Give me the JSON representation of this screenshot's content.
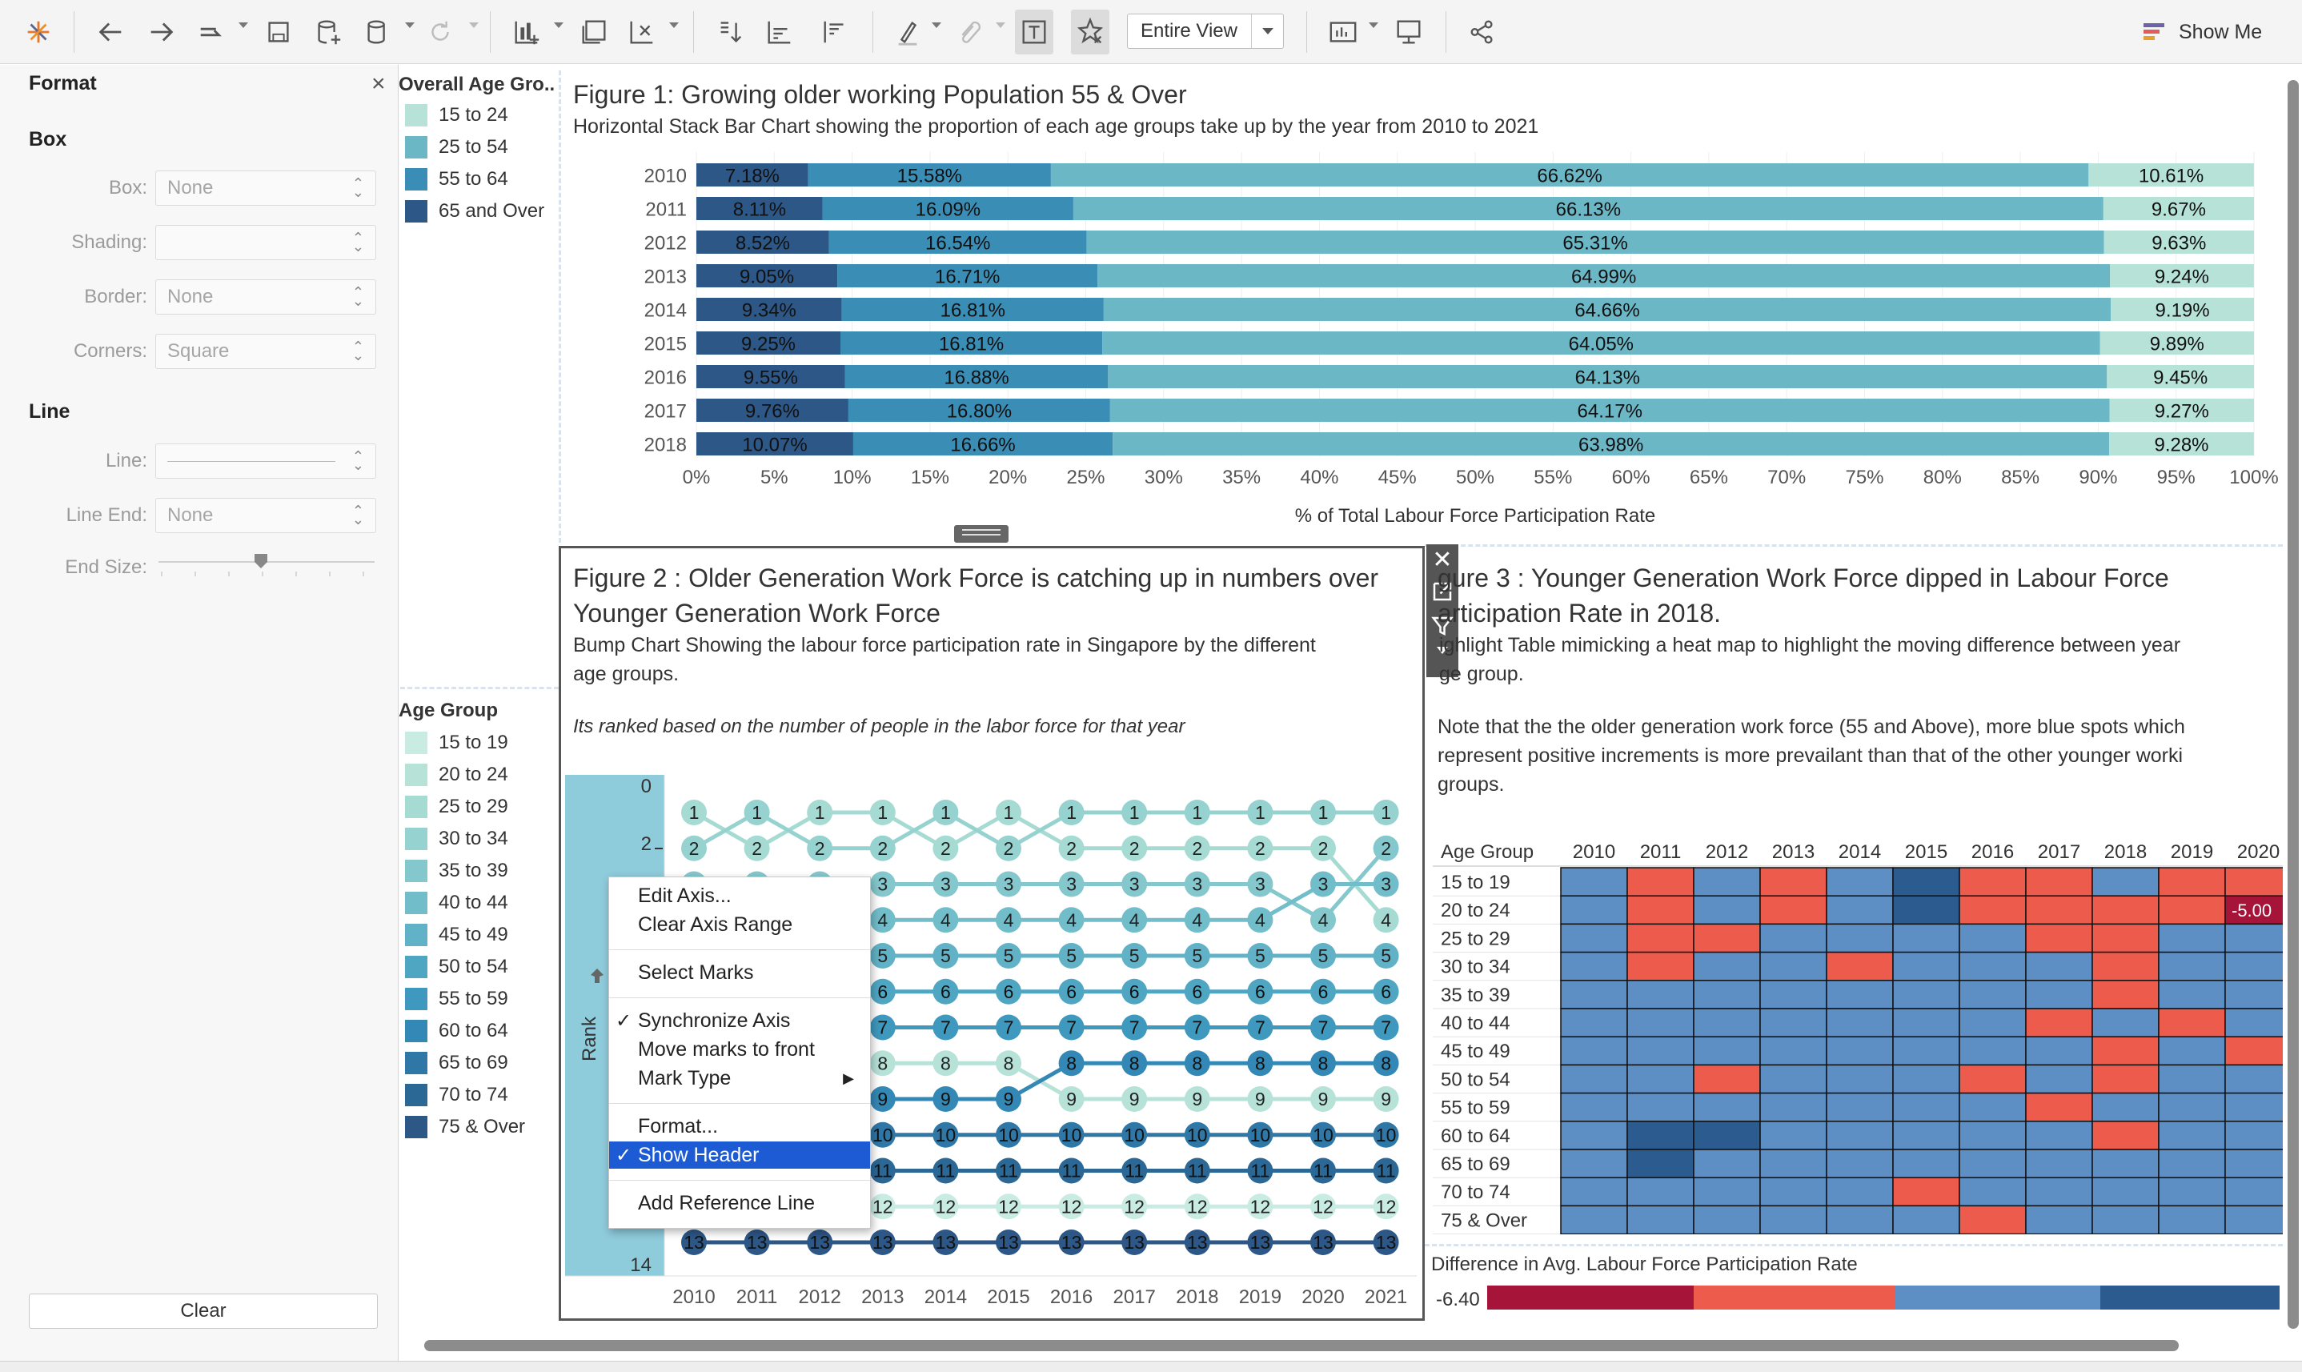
{
  "toolbar": {
    "view_label": "Entire View",
    "show_me_label": "Show Me",
    "icons": [
      "tableau-logo-icon",
      "undo-icon",
      "redo-icon",
      "replay-icon",
      "save-icon",
      "new-datasource-icon",
      "pause-icon",
      "refresh-icon",
      "new-worksheet-icon",
      "duplicate-icon",
      "clear-sheet-icon",
      "swap-icon",
      "sort-asc-icon",
      "sort-desc-icon",
      "highlight-icon",
      "group-icon",
      "labels-icon",
      "fix-axes-icon",
      "show-cards-icon",
      "presentation-icon",
      "share-icon"
    ]
  },
  "format_pane": {
    "title": "Format",
    "close": "×",
    "box_section": "Box",
    "line_section": "Line",
    "fields": {
      "box_label": "Box:",
      "box_value": "None",
      "shading_label": "Shading:",
      "shading_value": "",
      "border_label": "Border:",
      "border_value": "None",
      "corners_label": "Corners:",
      "corners_value": "Square",
      "line_label": "Line:",
      "line_end_label": "Line End:",
      "line_end_value": "None",
      "end_size_label": "End Size:"
    },
    "clear_label": "Clear"
  },
  "legend1": {
    "title": "Overall Age Gro..",
    "items": [
      {
        "label": "15 to 24",
        "color": "#b6e2d8"
      },
      {
        "label": "25 to 54",
        "color": "#6bb7c6"
      },
      {
        "label": "55 to 64",
        "color": "#3a8db5"
      },
      {
        "label": "65 and Over",
        "color": "#2d5786"
      }
    ]
  },
  "legend2": {
    "title": "Age Group",
    "items": [
      {
        "label": "15 to 19",
        "color": "#c8ebe2"
      },
      {
        "label": "20 to 24",
        "color": "#b6e2d8"
      },
      {
        "label": "25 to 29",
        "color": "#a6dbd3"
      },
      {
        "label": "30 to 34",
        "color": "#96d2cf"
      },
      {
        "label": "35 to 39",
        "color": "#84c8cd"
      },
      {
        "label": "40 to 44",
        "color": "#72bdca"
      },
      {
        "label": "45 to 49",
        "color": "#61b2c6"
      },
      {
        "label": "50 to 54",
        "color": "#4fa6c2"
      },
      {
        "label": "55 to 59",
        "color": "#3f98bd"
      },
      {
        "label": "60 to 64",
        "color": "#3488b5"
      },
      {
        "label": "65 to 69",
        "color": "#2f77a6"
      },
      {
        "label": "70 to 74",
        "color": "#2b6896"
      },
      {
        "label": "75 & Over",
        "color": "#2d5786"
      }
    ]
  },
  "fig1": {
    "title": "Figure 1: Growing older working Population 55 & Over",
    "subtitle": "Horizontal Stack Bar Chart showing the proportion of each age groups take up by the year from 2010 to 2021"
  },
  "fig2": {
    "title_line1": "Figure 2 : Older Generation Work Force is catching up in numbers over",
    "title_line2": "Younger Generation Work Force",
    "sub1": "Bump Chart Showing the labour force participation rate in Singapore by the different",
    "sub2": "age groups.",
    "sub3": "Its ranked based on the number of people in the labor force for that year",
    "axis_label": "Rank"
  },
  "fig3": {
    "title_line1": "gure 3 : Younger Generation Work Force dipped in Labour Force",
    "title_line2": "articipation Rate in 2018.",
    "sub1": "ighlight Table mimicking a heat map to highlight the moving difference between year",
    "sub2": "ge group.",
    "sub3": "Note that the the older generation work force (55 and Above), more blue spots which",
    "sub4": "represent positive increments is more  prevailant than that of the other younger worki",
    "sub5": "groups.",
    "row_header": "Age Group",
    "cell_value": "-5.00",
    "legend_title": "Difference in Avg. Labour Force Participation Rate",
    "legend_min": "-6.40"
  },
  "context_menu": {
    "items": [
      "Edit Axis...",
      "Clear Axis Range",
      "Select Marks",
      "Synchronize Axis",
      "Move marks to front",
      "Mark Type",
      "Format...",
      "Show Header",
      "Add Reference Line"
    ],
    "check": "✓",
    "submenu": "▶"
  },
  "chart_data": [
    {
      "type": "bar",
      "orientation": "horizontal",
      "stacked": true,
      "title": "Figure 1: Growing older working Population 55 & Over",
      "xlabel": "% of Total Labour Force Participation Rate",
      "xlim": [
        0,
        100
      ],
      "x_ticks": [
        "0%",
        "5%",
        "10%",
        "15%",
        "20%",
        "25%",
        "30%",
        "35%",
        "40%",
        "45%",
        "50%",
        "55%",
        "60%",
        "65%",
        "70%",
        "75%",
        "80%",
        "85%",
        "90%",
        "95%",
        "100%"
      ],
      "categories": [
        "2010",
        "2011",
        "2012",
        "2013",
        "2014",
        "2015",
        "2016",
        "2017",
        "2018"
      ],
      "series": [
        {
          "name": "65 and Over",
          "color": "#2d5786",
          "values": [
            7.18,
            8.11,
            8.52,
            9.05,
            9.34,
            9.25,
            9.55,
            9.76,
            10.07
          ]
        },
        {
          "name": "55 to 64",
          "color": "#3a8db5",
          "values": [
            15.58,
            16.09,
            16.54,
            16.71,
            16.81,
            16.81,
            16.88,
            16.8,
            16.66
          ]
        },
        {
          "name": "25 to 54",
          "color": "#6bb7c6",
          "values": [
            66.62,
            66.13,
            65.31,
            64.99,
            64.66,
            64.05,
            64.13,
            64.17,
            63.98
          ]
        },
        {
          "name": "15 to 24",
          "color": "#b6e2d8",
          "values": [
            10.61,
            9.67,
            9.63,
            9.24,
            9.19,
            9.89,
            9.45,
            9.27,
            9.28
          ]
        }
      ]
    },
    {
      "type": "line",
      "subtype": "bump",
      "ylabel": "Rank",
      "y_ticks": [
        "0",
        "2",
        "14"
      ],
      "categories": [
        "2010",
        "2011",
        "2012",
        "2013",
        "2014",
        "2015",
        "2016",
        "2017",
        "2018",
        "2019",
        "2020",
        "2021"
      ],
      "series": [
        {
          "name": "15 to 19",
          "color": "#c8ebe2",
          "values": [
            12,
            12,
            12,
            12,
            12,
            12,
            12,
            12,
            12,
            12,
            12,
            12
          ]
        },
        {
          "name": "20 to 24",
          "color": "#b6e2d8",
          "values": [
            8,
            8,
            8,
            8,
            8,
            8,
            9,
            9,
            9,
            9,
            9,
            9
          ]
        },
        {
          "name": "25 to 29",
          "color": "#a6dbd3",
          "values": [
            1,
            2,
            1,
            1,
            2,
            1,
            2,
            2,
            2,
            2,
            2,
            4
          ]
        },
        {
          "name": "30 to 34",
          "color": "#96d2cf",
          "values": [
            2,
            1,
            2,
            2,
            1,
            2,
            1,
            1,
            1,
            1,
            1,
            1
          ]
        },
        {
          "name": "35 to 39",
          "color": "#84c8cd",
          "values": [
            3,
            3,
            3,
            3,
            3,
            3,
            3,
            3,
            3,
            3,
            4,
            2
          ]
        },
        {
          "name": "40 to 44",
          "color": "#72bdca",
          "values": [
            4,
            4,
            4,
            4,
            4,
            4,
            4,
            4,
            4,
            4,
            3,
            3
          ]
        },
        {
          "name": "45 to 49",
          "color": "#61b2c6",
          "values": [
            5,
            5,
            5,
            5,
            5,
            5,
            5,
            5,
            5,
            5,
            5,
            5
          ]
        },
        {
          "name": "50 to 54",
          "color": "#4fa6c2",
          "values": [
            6,
            6,
            6,
            6,
            6,
            6,
            6,
            6,
            6,
            6,
            6,
            6
          ]
        },
        {
          "name": "55 to 59",
          "color": "#3f98bd",
          "values": [
            7,
            7,
            7,
            7,
            7,
            7,
            7,
            7,
            7,
            7,
            7,
            7
          ]
        },
        {
          "name": "60 to 64",
          "color": "#3488b5",
          "values": [
            9,
            9,
            9,
            9,
            9,
            9,
            8,
            8,
            8,
            8,
            8,
            8
          ]
        },
        {
          "name": "65 to 69",
          "color": "#2f77a6",
          "values": [
            10,
            10,
            10,
            10,
            10,
            10,
            10,
            10,
            10,
            10,
            10,
            10
          ]
        },
        {
          "name": "70 to 74",
          "color": "#2b6896",
          "values": [
            11,
            11,
            11,
            11,
            11,
            11,
            11,
            11,
            11,
            11,
            11,
            11
          ]
        },
        {
          "name": "75 & Over",
          "color": "#2d5786",
          "values": [
            13,
            13,
            13,
            13,
            13,
            13,
            13,
            13,
            13,
            13,
            13,
            13
          ]
        }
      ]
    },
    {
      "type": "heatmap",
      "title": "Figure 3 : Younger Generation Work Force dipped in Labour Force Participation Rate in 2018.",
      "columns": [
        "2010",
        "2011",
        "2012",
        "2013",
        "2014",
        "2015",
        "2016",
        "2017",
        "2018",
        "2019",
        "2020"
      ],
      "rows": [
        "15 to 19",
        "20 to 24",
        "25 to 29",
        "30 to 34",
        "35 to 39",
        "40 to 44",
        "45 to 49",
        "50 to 54",
        "55 to 59",
        "60 to 64",
        "65 to 69",
        "70 to 74",
        "75 & Over"
      ],
      "levels": {
        "0": "#a7143a",
        "1": "#ec5b4c",
        "2": "#5e8fc4",
        "3": "#2c5b8f"
      },
      "cells": [
        [
          2,
          1,
          2,
          1,
          2,
          3,
          1,
          1,
          2,
          1,
          1
        ],
        [
          2,
          1,
          2,
          1,
          2,
          3,
          1,
          1,
          1,
          1,
          0
        ],
        [
          2,
          1,
          1,
          2,
          2,
          2,
          2,
          1,
          1,
          2,
          2
        ],
        [
          2,
          1,
          2,
          2,
          1,
          2,
          2,
          2,
          1,
          2,
          2
        ],
        [
          2,
          2,
          2,
          2,
          2,
          2,
          2,
          2,
          1,
          2,
          2
        ],
        [
          2,
          2,
          2,
          2,
          2,
          2,
          2,
          1,
          2,
          1,
          2
        ],
        [
          2,
          2,
          2,
          2,
          2,
          2,
          2,
          2,
          1,
          2,
          1
        ],
        [
          2,
          2,
          1,
          2,
          2,
          2,
          1,
          2,
          1,
          2,
          2
        ],
        [
          2,
          2,
          2,
          2,
          2,
          2,
          2,
          1,
          2,
          2,
          2
        ],
        [
          2,
          3,
          3,
          2,
          2,
          2,
          2,
          2,
          1,
          2,
          2
        ],
        [
          2,
          3,
          2,
          2,
          2,
          2,
          2,
          2,
          2,
          2,
          2
        ],
        [
          2,
          2,
          2,
          2,
          2,
          1,
          2,
          2,
          2,
          2,
          2
        ],
        [
          2,
          2,
          2,
          2,
          2,
          2,
          1,
          2,
          2,
          2,
          2
        ]
      ],
      "labelled_cell": {
        "row": "20 to 24",
        "column": "2020",
        "value": "-5.00"
      },
      "legend": {
        "title": "Difference in Avg. Labour Force Participation Rate",
        "min_label": "-6.40"
      }
    }
  ]
}
